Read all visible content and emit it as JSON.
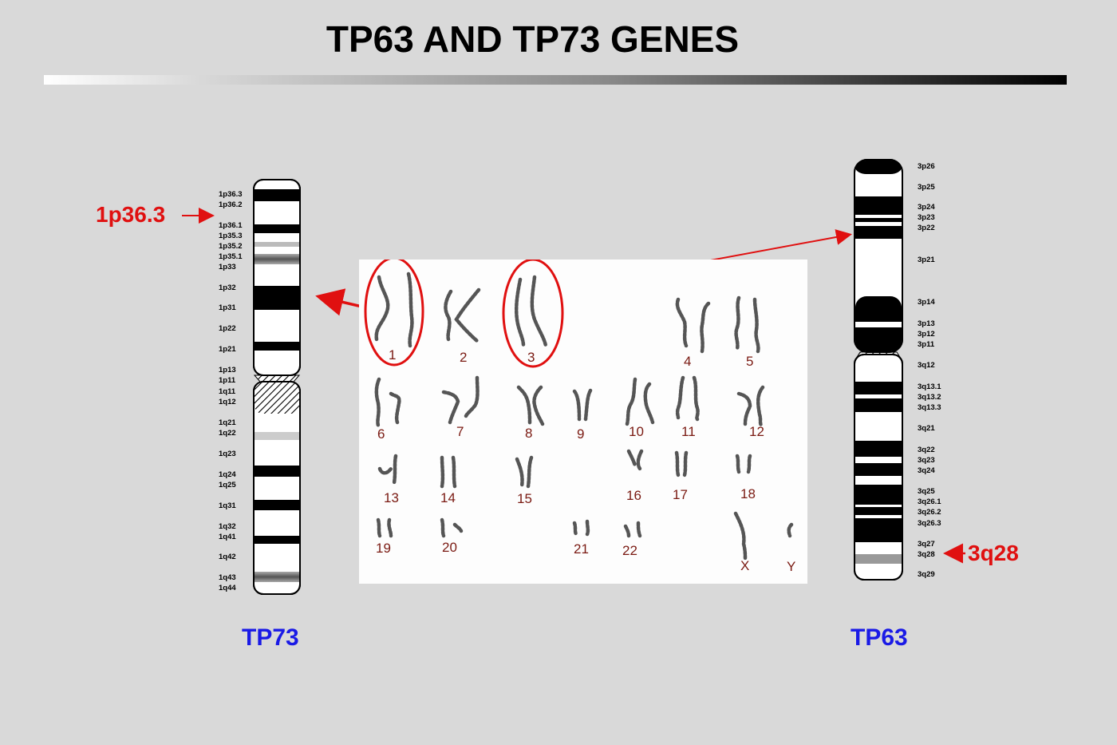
{
  "title": "TP63 AND TP73 GENES",
  "left_chromosome": {
    "gene": "TP73",
    "locus": "1p36.3",
    "bands": [
      "1p36.3",
      "1p36.2",
      "1p36.1",
      "1p35.3",
      "1p35.2",
      "1p35.1",
      "1p33",
      "1p32",
      "1p31",
      "1p22",
      "1p21",
      "1p13",
      "1p11",
      "1q11",
      "1q12",
      "1q21",
      "1q22",
      "1q23",
      "1q24",
      "1q25",
      "1q31",
      "1q32",
      "1q41",
      "1q42",
      "1q43",
      "1q44"
    ]
  },
  "right_chromosome": {
    "gene": "TP63",
    "locus": "3q28",
    "bands": [
      "3p26",
      "3p25",
      "3p24",
      "3p23",
      "3p22",
      "3p21",
      "3p14",
      "3p13",
      "3p12",
      "3p11",
      "3q12",
      "3q13.1",
      "3q13.2",
      "3q13.3",
      "3q21",
      "3q22",
      "3q23",
      "3q24",
      "3q25",
      "3q26.1",
      "3q26.2",
      "3q26.3",
      "3q27",
      "3q28",
      "3q29"
    ]
  },
  "karyotype": {
    "numbers": [
      "1",
      "2",
      "3",
      "4",
      "5",
      "6",
      "7",
      "8",
      "9",
      "10",
      "11",
      "12",
      "13",
      "14",
      "15",
      "16",
      "17",
      "18",
      "19",
      "20",
      "21",
      "22",
      "X",
      "Y"
    ]
  },
  "colors": {
    "arrow": "#e01010",
    "gene_label": "#1a1ae6",
    "karyo_number": "#7a1a12"
  },
  "icons": {
    "left_arrow": "right-arrow",
    "right_arrow": "left-arrow"
  }
}
